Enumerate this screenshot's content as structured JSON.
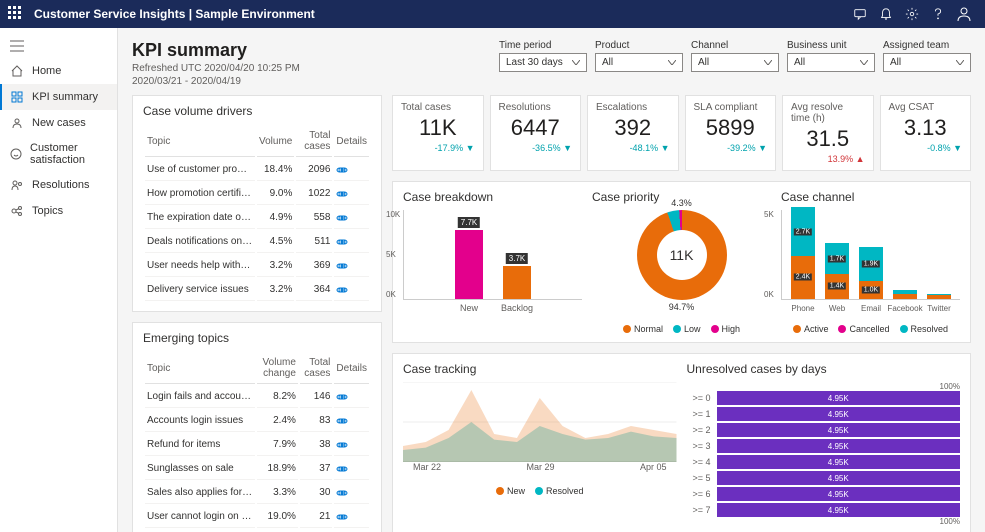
{
  "app": {
    "title": "Customer Service Insights | Sample Environment"
  },
  "sidebar": {
    "items": [
      {
        "label": "Home"
      },
      {
        "label": "KPI summary"
      },
      {
        "label": "New cases"
      },
      {
        "label": "Customer satisfaction"
      },
      {
        "label": "Resolutions"
      },
      {
        "label": "Topics"
      }
    ]
  },
  "page": {
    "title": "KPI summary",
    "refreshed": "Refreshed UTC 2020/04/20 10:25 PM",
    "range": "2020/03/21 - 2020/04/19"
  },
  "filters": {
    "period": {
      "label": "Time period",
      "value": "Last 30 days"
    },
    "product": {
      "label": "Product",
      "value": "All"
    },
    "channel": {
      "label": "Channel",
      "value": "All"
    },
    "bu": {
      "label": "Business unit",
      "value": "All"
    },
    "team": {
      "label": "Assigned team",
      "value": "All"
    }
  },
  "drivers": {
    "title": "Case volume drivers",
    "cols": [
      "Topic",
      "Volume",
      "Total cases",
      "Details"
    ],
    "rows": [
      {
        "topic": "Use of customer promo code",
        "vol": "18.4%",
        "total": "2096"
      },
      {
        "topic": "How promotion certificate works...",
        "vol": "9.0%",
        "total": "1022"
      },
      {
        "topic": "The expiration date of a promoti...",
        "vol": "4.9%",
        "total": "558"
      },
      {
        "topic": "Deals notifications on mobile",
        "vol": "4.5%",
        "total": "511"
      },
      {
        "topic": "User needs help with payment is...",
        "vol": "3.2%",
        "total": "369"
      },
      {
        "topic": "Delivery service issues",
        "vol": "3.2%",
        "total": "364"
      }
    ]
  },
  "emerging": {
    "title": "Emerging topics",
    "cols": [
      "Topic",
      "Volume change",
      "Total cases",
      "Details"
    ],
    "rows": [
      {
        "topic": "Login fails and account ...",
        "vol": "8.2%",
        "total": "146"
      },
      {
        "topic": "Accounts login issues",
        "vol": "2.4%",
        "total": "83"
      },
      {
        "topic": "Refund for items",
        "vol": "7.9%",
        "total": "38"
      },
      {
        "topic": "Sunglasses on sale",
        "vol": "18.9%",
        "total": "37"
      },
      {
        "topic": "Sales also applies for in...",
        "vol": "3.3%",
        "total": "30"
      },
      {
        "topic": "User cannot login on m...",
        "vol": "19.0%",
        "total": "21"
      }
    ]
  },
  "kpis": [
    {
      "label": "Total cases",
      "value": "11K",
      "delta": "-17.9%",
      "dir": "down"
    },
    {
      "label": "Resolutions",
      "value": "6447",
      "delta": "-36.5%",
      "dir": "down"
    },
    {
      "label": "Escalations",
      "value": "392",
      "delta": "-48.1%",
      "dir": "down"
    },
    {
      "label": "SLA compliant",
      "value": "5899",
      "delta": "-39.2%",
      "dir": "down"
    },
    {
      "label": "Avg resolve time (h)",
      "value": "31.5",
      "delta": "13.9%",
      "dir": "up"
    },
    {
      "label": "Avg CSAT",
      "value": "3.13",
      "delta": "-0.8%",
      "dir": "down"
    }
  ],
  "breakdown": {
    "title": "Case breakdown",
    "ymax": 10,
    "ytick": 5,
    "bars": [
      {
        "name": "New",
        "value": 7.7,
        "label": "7.7K",
        "color": "#e3008c"
      },
      {
        "name": "Backlog",
        "value": 3.7,
        "label": "3.7K",
        "color": "#e86c0a"
      }
    ]
  },
  "priority": {
    "title": "Case priority",
    "center": "11K",
    "slices": [
      {
        "label": "Normal",
        "pct": 94.7,
        "color": "#e86c0a"
      },
      {
        "label": "Low",
        "pct": 4.3,
        "color": "#00b7c3"
      },
      {
        "label": "High",
        "pct": 1.0,
        "color": "#e3008c"
      }
    ],
    "toplabel": "4.3%",
    "botlabel": "94.7%",
    "legend": [
      "Normal",
      "Low",
      "High"
    ],
    "legend_colors": [
      "#e86c0a",
      "#00b7c3",
      "#e3008c"
    ]
  },
  "channel": {
    "title": "Case channel",
    "ymax": 5,
    "bars": [
      {
        "name": "Phone",
        "segs": [
          {
            "v": 2.4,
            "c": "#e86c0a",
            "n": "2.4K"
          },
          {
            "v": 2.7,
            "c": "#00b7c3",
            "n": "2.7K"
          }
        ]
      },
      {
        "name": "Web",
        "segs": [
          {
            "v": 1.4,
            "c": "#e86c0a",
            "n": "1.4K"
          },
          {
            "v": 1.7,
            "c": "#00b7c3",
            "n": "1.7K"
          }
        ]
      },
      {
        "name": "Email",
        "segs": [
          {
            "v": 1.0,
            "c": "#e86c0a",
            "n": "1.0K"
          },
          {
            "v": 1.9,
            "c": "#00b7c3",
            "n": "1.9K"
          }
        ]
      },
      {
        "name": "Facebook",
        "segs": [
          {
            "v": 0.3,
            "c": "#e86c0a"
          },
          {
            "v": 0.2,
            "c": "#00b7c3"
          }
        ]
      },
      {
        "name": "Twitter",
        "segs": [
          {
            "v": 0.2,
            "c": "#e86c0a"
          },
          {
            "v": 0.1,
            "c": "#00b7c3"
          }
        ]
      }
    ],
    "legend": [
      "Active",
      "Cancelled",
      "Resolved"
    ],
    "legend_colors": [
      "#e86c0a",
      "#e3008c",
      "#00b7c3"
    ]
  },
  "tracking": {
    "title": "Case tracking",
    "ymax": 1000,
    "yticks": [
      "0",
      "500",
      "1000"
    ],
    "x": [
      "Mar 22",
      "Mar 29",
      "Apr 05"
    ],
    "new": {
      "color": "#e86c0a",
      "points": [
        200,
        250,
        400,
        900,
        350,
        300,
        800,
        450,
        300,
        350,
        450,
        400,
        350
      ]
    },
    "resolved": {
      "color": "#00b7c3",
      "points": [
        150,
        180,
        300,
        500,
        280,
        250,
        450,
        350,
        280,
        300,
        380,
        320,
        300
      ]
    },
    "legend": [
      "New",
      "Resolved"
    ]
  },
  "unresolved": {
    "title": "Unresolved cases by days",
    "scale_top": "100%",
    "scale_bot": "100%",
    "rows": [
      {
        "key": ">= 0",
        "val": "4.95K",
        "pct": 100
      },
      {
        "key": ">= 1",
        "val": "4.95K",
        "pct": 100
      },
      {
        "key": ">= 2",
        "val": "4.95K",
        "pct": 100
      },
      {
        "key": ">= 3",
        "val": "4.95K",
        "pct": 100
      },
      {
        "key": ">= 4",
        "val": "4.95K",
        "pct": 100
      },
      {
        "key": ">= 5",
        "val": "4.95K",
        "pct": 100
      },
      {
        "key": ">= 6",
        "val": "4.95K",
        "pct": 100
      },
      {
        "key": ">= 7",
        "val": "4.95K",
        "pct": 100
      }
    ],
    "bar_color": "#6b2fbf"
  }
}
